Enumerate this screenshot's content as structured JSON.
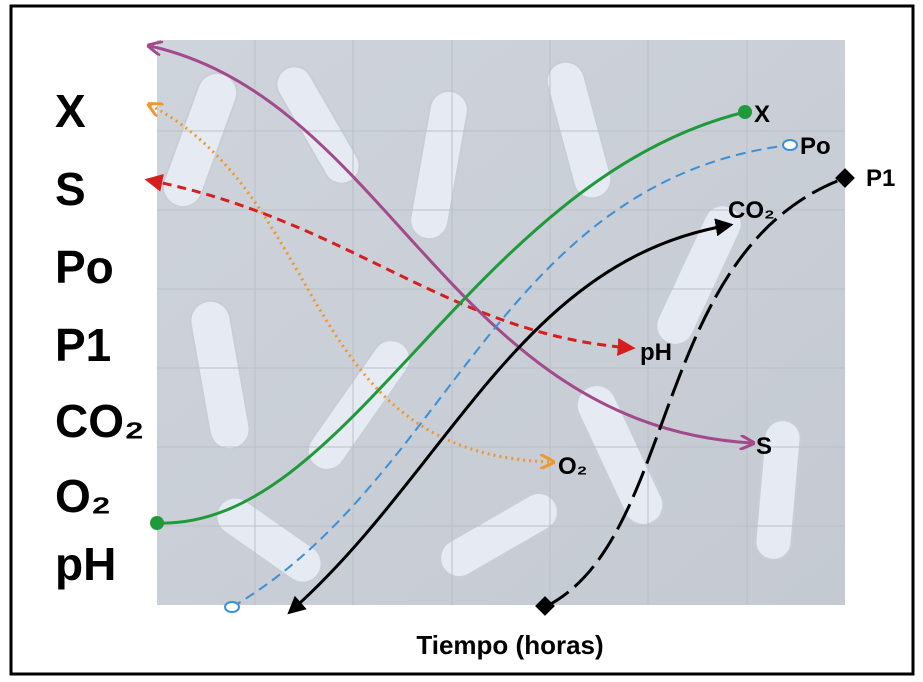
{
  "axis_labels": [
    "X",
    "S",
    "Po",
    "P1",
    "CO₂",
    "O₂",
    "pH"
  ],
  "curve_labels": {
    "x": "X",
    "po": "Po",
    "p1": "P1",
    "co2": "CO₂",
    "ph": "pH",
    "o2": "O₂",
    "s": "S"
  },
  "x_axis_label": "Tiempo (horas)"
}
